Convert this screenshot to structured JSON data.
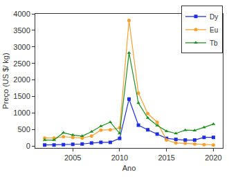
{
  "chart_data": {
    "type": "line",
    "x_label": "Ano",
    "y_label": "Preço (US $/ kg)",
    "x": [
      2002,
      2003,
      2004,
      2005,
      2006,
      2007,
      2008,
      2009,
      2010,
      2011,
      2012,
      2013,
      2014,
      2015,
      2016,
      2017,
      2018,
      2019,
      2020
    ],
    "series": [
      {
        "name": "Dy",
        "color": "#1f2fe0",
        "marker": "square",
        "values": [
          30,
          30,
          40,
          50,
          60,
          90,
          110,
          110,
          230,
          1420,
          630,
          490,
          360,
          230,
          200,
          180,
          180,
          260,
          260
        ]
      },
      {
        "name": "Eu",
        "color": "#f5a030",
        "marker": "circle",
        "values": [
          240,
          240,
          280,
          260,
          240,
          300,
          480,
          490,
          550,
          3800,
          1600,
          980,
          720,
          180,
          90,
          80,
          60,
          40,
          30
        ]
      },
      {
        "name": "Tb",
        "color": "#1e8f1e",
        "marker": "triangle-up",
        "values": [
          180,
          180,
          400,
          330,
          300,
          430,
          600,
          720,
          380,
          2820,
          1300,
          850,
          620,
          450,
          380,
          480,
          470,
          560,
          660
        ]
      }
    ],
    "xlim": [
      2001,
      2021
    ],
    "xticks": [
      2005,
      2010,
      2015,
      2020
    ],
    "ylim": [
      -60,
      4000
    ],
    "yticks": [
      0,
      500,
      1000,
      1500,
      2000,
      2500,
      3000,
      3500,
      4000
    ],
    "legend": "top right",
    "grid": false
  }
}
